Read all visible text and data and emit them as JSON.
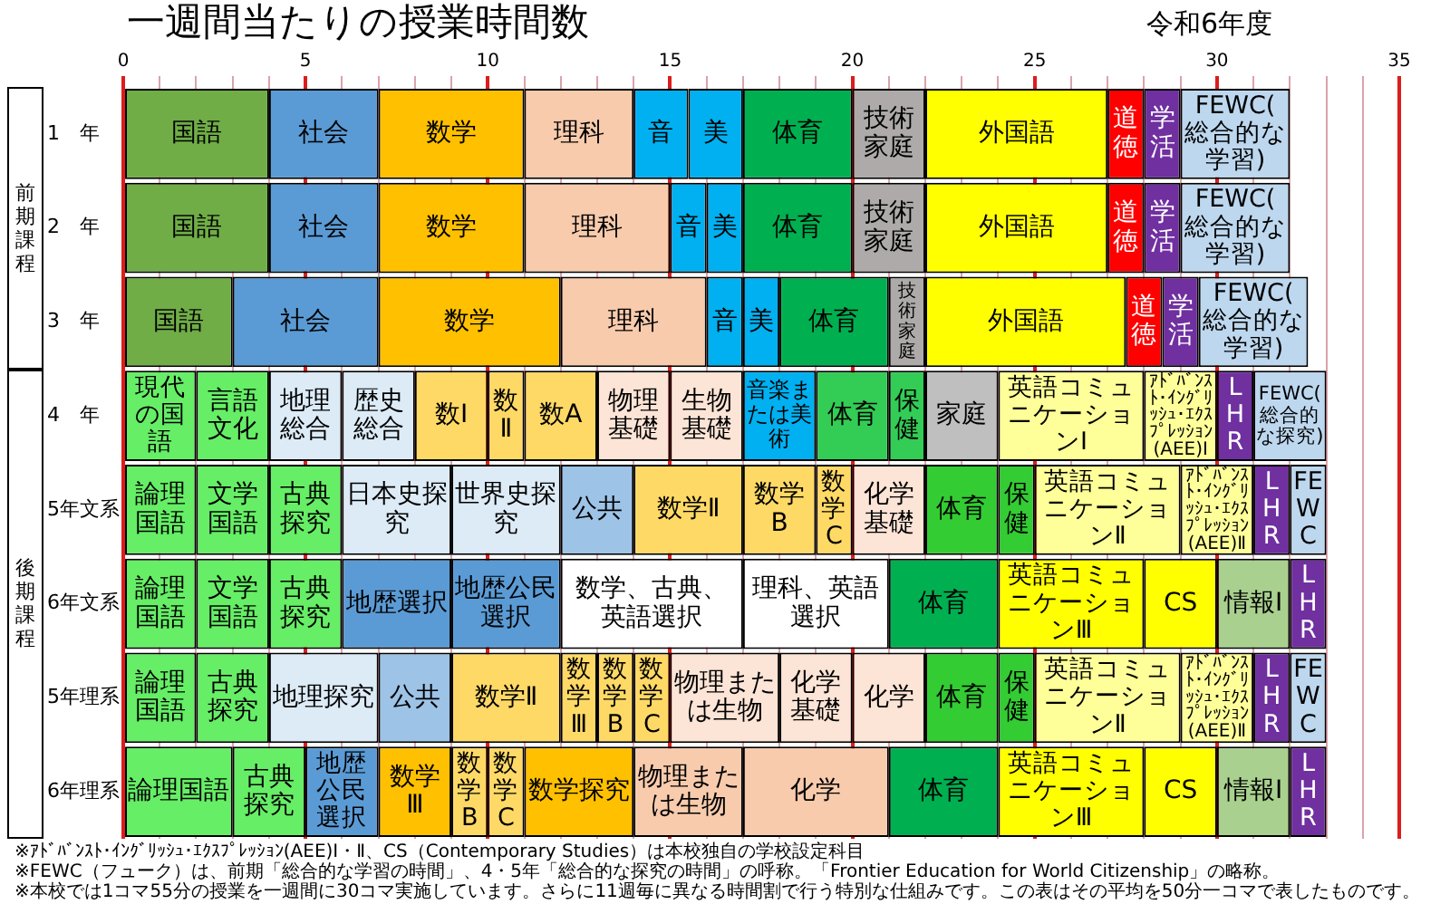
{
  "chart_data": {
    "type": "bar",
    "orientation": "horizontal",
    "stacked": true,
    "title": "一週間当たりの授業時間数",
    "subtitle": "令和6年度",
    "categories": [
      "1　年",
      "2　年",
      "3　年",
      "4　年",
      "5年文系",
      "6年文系",
      "5年理系",
      "6年理系"
    ],
    "xlim": [
      0,
      35
    ],
    "xticks": [
      0,
      {
        "value": 1,
        "label": null
      },
      {
        "value": 2,
        "label": null
      },
      {
        "value": 3,
        "label": null
      },
      {
        "value": 4,
        "label": null
      },
      5,
      {
        "value": 6,
        "label": null
      },
      {
        "value": 7,
        "label": null
      },
      {
        "value": 8,
        "label": null
      },
      {
        "value": 9,
        "label": null
      },
      10,
      {
        "value": 11,
        "label": null
      },
      {
        "value": 12,
        "label": null
      },
      {
        "value": 13,
        "label": null
      },
      {
        "value": 14,
        "label": null
      },
      15,
      {
        "value": 16,
        "label": null
      },
      {
        "value": 17,
        "label": null
      },
      {
        "value": 18,
        "label": null
      },
      {
        "value": 19,
        "label": null
      },
      20,
      {
        "value": 21,
        "label": null
      },
      {
        "value": 22,
        "label": null
      },
      {
        "value": 23,
        "label": null
      },
      {
        "value": 24,
        "label": null
      },
      25,
      {
        "value": 26,
        "label": null
      },
      {
        "value": 27,
        "label": null
      },
      {
        "value": 28,
        "label": null
      },
      {
        "value": 29,
        "label": null
      },
      30,
      {
        "value": 31,
        "label": null
      },
      {
        "value": 32,
        "label": null
      },
      {
        "value": 33,
        "label": null
      },
      {
        "value": 34,
        "label": null
      },
      35
    ],
    "grid": "x",
    "series": [
      {
        "values": [
          4,
          4,
          3,
          2,
          2,
          2,
          2,
          3
        ],
        "colors": [
          "#70ad47",
          "#70ad47",
          "#70ad47",
          "#66ee66",
          "#66ee66",
          "#66ee66",
          "#66ee66",
          "#66ee66"
        ],
        "value_labels": [
          "国語",
          "国語",
          "国語",
          "現代の国語",
          "論理国語",
          "論理国語",
          "論理国語",
          "論理国語"
        ]
      },
      {
        "values": [
          3,
          3,
          4,
          2,
          2,
          2,
          2,
          2
        ],
        "colors": [
          "#5b9bd5",
          "#5b9bd5",
          "#5b9bd5",
          "#66ee66",
          "#66ee66",
          "#66ee66",
          "#66ee66",
          "#66ee66"
        ],
        "value_labels": [
          "社会",
          "社会",
          "社会",
          "言語文化",
          "文学国語",
          "文学国語",
          "古典探究",
          "古典探究"
        ]
      },
      {
        "values": [
          4,
          4,
          5,
          2,
          2,
          2,
          3,
          2
        ],
        "colors": [
          "#ffc000",
          "#ffc000",
          "#ffc000",
          "#ddebf7",
          "#66ee66",
          "#66ee66",
          "#ddebf7",
          "#5b9bd5"
        ],
        "value_labels": [
          "数学",
          "数学",
          "数学",
          "地理総合",
          "古典探究",
          "古典探究",
          "地理探究",
          "地歴公民選択"
        ]
      },
      {
        "values": [
          3,
          4,
          4,
          2,
          3,
          3,
          2,
          2
        ],
        "colors": [
          "#f8cbad",
          "#f8cbad",
          "#f8cbad",
          "#ddebf7",
          "#ddebf7",
          "#5b9bd5",
          "#9dc3e6",
          "#ffc000"
        ],
        "value_labels": [
          "理科",
          "理科",
          "理科",
          "歴史総合",
          "日本史探究",
          "地歴選択",
          "公共",
          "数学Ⅲ"
        ]
      },
      {
        "values": [
          1.5,
          1,
          1,
          2,
          3,
          3,
          3,
          1
        ],
        "colors": [
          "#00b0f0",
          "#00b0f0",
          "#00b0f0",
          "#ffd966",
          "#ddebf7",
          "#5b9bd5",
          "#ffd966",
          "#ffd966"
        ],
        "value_labels": [
          "音",
          "音",
          "音",
          "数Ⅰ",
          "世界史探究",
          "地歴公民選択",
          "数学Ⅱ",
          "数学B"
        ]
      },
      {
        "values": [
          1.5,
          1,
          1,
          1,
          2,
          5,
          1,
          1
        ],
        "colors": [
          "#00b0f0",
          "#00b0f0",
          "#00b0f0",
          "#ffd966",
          "#9dc3e6",
          "#ffffff",
          "#ffd966",
          "#ffd966"
        ],
        "value_labels": [
          "美",
          "美",
          "美",
          "数Ⅱ",
          "公共",
          "数学、古典、英語選択",
          "数学Ⅲ",
          "数学C"
        ]
      },
      {
        "values": [
          3,
          3,
          3,
          2,
          3,
          4,
          1,
          3
        ],
        "colors": [
          "#00b050",
          "#00b050",
          "#00b050",
          "#ffd966",
          "#ffd966",
          "#ffffff",
          "#ffd966",
          "#ffc000"
        ],
        "value_labels": [
          "体育",
          "体育",
          "体育",
          "数A",
          "数学Ⅱ",
          "理科、英語選択",
          "数学B",
          "数学探究"
        ]
      },
      {
        "values": [
          2,
          2,
          1,
          2,
          2,
          3,
          1,
          3
        ],
        "colors": [
          "#aeaaaa",
          "#aeaaaa",
          "#aeaaaa",
          "#fce4d6",
          "#ffd966",
          "#00b050",
          "#ffd966",
          "#f8cbad"
        ],
        "value_labels": [
          "技術家庭",
          "技術家庭",
          "技術家庭",
          "物理基礎",
          "数学B",
          "体育",
          "数学C",
          "物理または生物"
        ]
      },
      {
        "values": [
          5,
          5,
          5.5,
          2,
          1,
          4,
          3,
          4
        ],
        "colors": [
          "#ffff00",
          "#ffff00",
          "#ffff00",
          "#fce4d6",
          "#ffd966",
          "#ffff00",
          "#fce4d6",
          "#f8cbad"
        ],
        "value_labels": [
          "外国語",
          "外国語",
          "外国語",
          "生物基礎",
          "数学C",
          "英語コミュニケーションⅢ",
          "物理または生物",
          "化学"
        ]
      },
      {
        "values": [
          1,
          1,
          1,
          2,
          2,
          2,
          2,
          3
        ],
        "colors": [
          "#ff0000",
          "#ff0000",
          "#ff0000",
          "#00b0f0",
          "#fce4d6",
          "#ffff00",
          "#fce4d6",
          "#00b050"
        ],
        "value_labels": [
          "道徳",
          "道徳",
          "道徳",
          "音楽または美術",
          "化学基礎",
          "CS",
          "化学基礎",
          "体育"
        ]
      },
      {
        "values": [
          1,
          1,
          1,
          2,
          2,
          2,
          2,
          4
        ],
        "colors": [
          "#7030a0",
          "#7030a0",
          "#7030a0",
          "#33cc55",
          "#33cc33",
          "#a9d08e",
          "#fce4d6",
          "#ffff00"
        ],
        "value_labels": [
          "学活",
          "学活",
          "学活",
          "体育",
          "体育",
          "情報Ⅰ",
          "化学",
          "英語コミュニケーションⅢ"
        ]
      },
      {
        "values": [
          3,
          3,
          3,
          1,
          1,
          1,
          2,
          2
        ],
        "colors": [
          "#bdd7ee",
          "#bdd7ee",
          "#bdd7ee",
          "#33cc55",
          "#33cc33",
          "#7030a0",
          "#33cc33",
          "#ffff00"
        ],
        "value_labels": [
          "FEWC(総合的な学習)",
          "FEWC(総合的な学習)",
          "FEWC(総合的な学習)",
          "保健",
          "保健",
          "LHR",
          "体育",
          "CS"
        ]
      },
      {
        "values": [
          null,
          null,
          null,
          2,
          4,
          null,
          1,
          2
        ],
        "colors": [
          null,
          null,
          null,
          "#bfbfbf",
          "#ffff99",
          null,
          "#33cc33",
          "#a9d08e"
        ],
        "value_labels": [
          null,
          null,
          null,
          "家庭",
          "英語コミュニケーションⅡ",
          null,
          "保健",
          "情報Ⅰ"
        ]
      },
      {
        "values": [
          null,
          null,
          null,
          4,
          2,
          null,
          4,
          1
        ],
        "colors": [
          null,
          null,
          null,
          "#ffff99",
          "#ffff99",
          null,
          "#ffff99",
          "#7030a0"
        ],
        "value_labels": [
          null,
          null,
          null,
          "英語コミュニケーションⅠ",
          "ｱﾄﾞﾊﾞﾝｽﾄ･ｲﾝｸﾞﾘｯｼｭ･ｴｸｽﾌﾟﾚｯｼｮﾝ(AEE)Ⅱ",
          null,
          "英語コミュニケーションⅡ",
          "LHR"
        ]
      },
      {
        "values": [
          null,
          null,
          null,
          2,
          1,
          null,
          2,
          null
        ],
        "colors": [
          null,
          null,
          null,
          "#ffff99",
          "#7030a0",
          null,
          "#ffff99",
          null
        ],
        "value_labels": [
          null,
          null,
          null,
          "ｱﾄﾞﾊﾞﾝｽﾄ･ｲﾝｸﾞﾘｯｼｭ･ｴｸｽﾌﾟﾚｯｼｮﾝ(AEE)Ⅰ",
          "LHR",
          null,
          "ｱﾄﾞﾊﾞﾝｽﾄ･ｲﾝｸﾞﾘｯｼｭ･ｴｸｽﾌﾟﾚｯｼｮﾝ(AEE)Ⅱ",
          null
        ]
      },
      {
        "values": [
          null,
          null,
          null,
          1,
          1,
          null,
          1,
          null
        ],
        "colors": [
          null,
          null,
          null,
          "#7030a0",
          "#bdd7ee",
          null,
          "#7030a0",
          null
        ],
        "value_labels": [
          null,
          null,
          null,
          "LHR",
          "FEWC",
          null,
          "LHR",
          null
        ]
      },
      {
        "values": [
          null,
          null,
          null,
          2,
          null,
          null,
          1,
          null
        ],
        "colors": [
          null,
          null,
          null,
          "#bdd7ee",
          null,
          null,
          "#bdd7ee",
          null
        ],
        "value_labels": [
          null,
          null,
          null,
          "FEWC(総合的な探究)",
          null,
          null,
          "FEWC",
          null
        ]
      }
    ],
    "annotations": [
      "前期課程",
      "後期課程",
      "※ｱﾄﾞﾊﾞﾝｽﾄ･ｲﾝｸﾞﾘｯｼｭ･ｴｸｽﾌﾟﾚｯｼｮﾝ(AEE)Ⅰ・Ⅱ、CS（Contemporary Studies）は本校独自の学校設定科目",
      "※FEWC（フューク）は、前期「総合的な学習の時間」、4・5年「総合的な探究の時間」の呼称。「Frontier Education for World Citizenship」の略称。",
      "※本校では1コマ55分の授業を一週間に30コマ実施しています。さらに11週毎に異なる時間割で行う特別な仕組みです。この表はその平均を50分一コマで表したものです。"
    ]
  }
}
